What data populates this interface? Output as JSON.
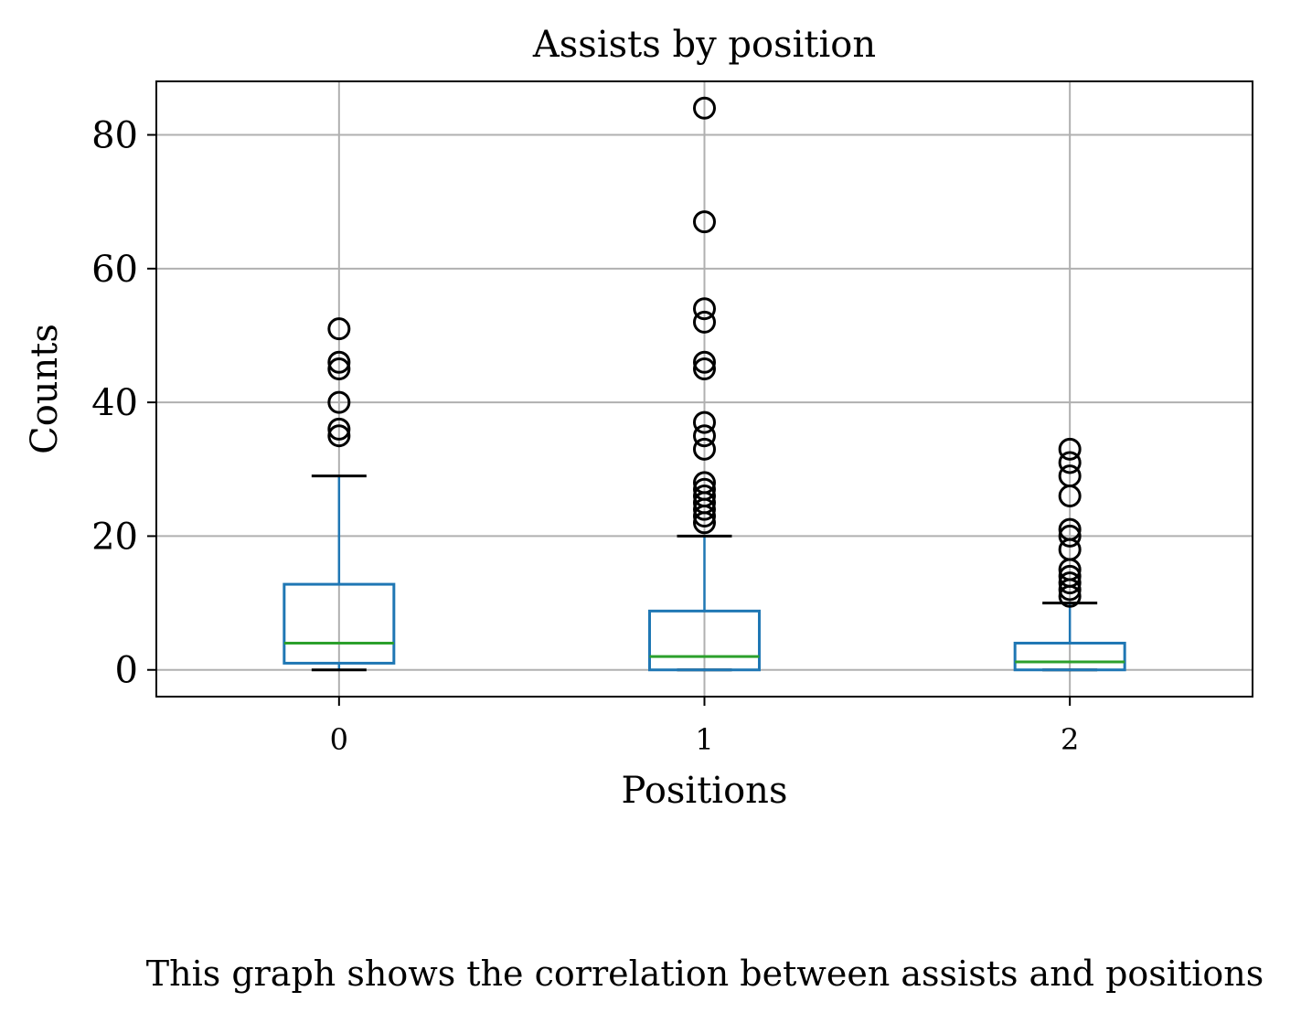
{
  "chart_data": {
    "type": "box",
    "title": "Assists by position",
    "xlabel": "Positions",
    "ylabel": "Counts",
    "ylim": [
      -4,
      88
    ],
    "yticks": [
      0,
      20,
      40,
      60,
      80
    ],
    "categories": [
      "0",
      "1",
      "2"
    ],
    "grid": true,
    "boxes": [
      {
        "category": "0",
        "whisker_low": 0,
        "q1": 1,
        "median": 4,
        "q3": 12.8,
        "whisker_high": 29,
        "outliers": [
          35,
          36,
          40,
          45,
          46,
          51
        ]
      },
      {
        "category": "1",
        "whisker_low": 0,
        "q1": 0,
        "median": 2,
        "q3": 8.8,
        "whisker_high": 20,
        "outliers": [
          22,
          23,
          24,
          25,
          26,
          27,
          28,
          33,
          35,
          37,
          45,
          46,
          52,
          54,
          67,
          84
        ]
      },
      {
        "category": "2",
        "whisker_low": 0,
        "q1": 0,
        "median": 1.2,
        "q3": 4,
        "whisker_high": 10,
        "outliers": [
          11,
          12,
          13,
          14,
          15,
          18,
          20,
          21,
          26,
          29,
          31,
          33
        ]
      }
    ],
    "colors": {
      "box": "#1f77b4",
      "median": "#2ca02c",
      "whisker_cap": "#000000",
      "outlier": "#000000",
      "grid": "#b0b0b0"
    }
  },
  "caption": "This graph shows the correlation between assists and positions"
}
